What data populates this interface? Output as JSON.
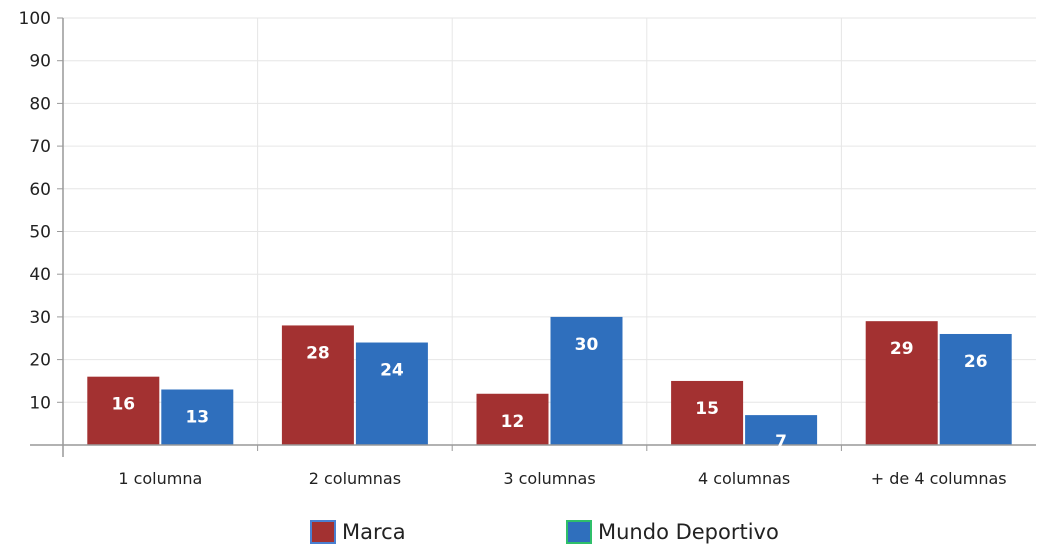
{
  "chart_data": {
    "type": "bar",
    "categories": [
      "1 columna",
      "2 columnas",
      "3 columnas",
      "4 columnas",
      "+ de 4 columnas"
    ],
    "series": [
      {
        "name": "Marca",
        "values": [
          16,
          28,
          12,
          15,
          29
        ],
        "color": "#a33131",
        "legend_border": "#4a7fd0"
      },
      {
        "name": "Mundo Deportivo",
        "values": [
          13,
          24,
          30,
          7,
          26
        ],
        "color": "#2f6fbd",
        "legend_border": "#2fbf6a"
      }
    ],
    "yticks": [
      "10",
      "20",
      "30",
      "40",
      "50",
      "60",
      "70",
      "80",
      "90",
      "100"
    ],
    "ylim": [
      0,
      100
    ],
    "grid": true,
    "legend_position": "bottom"
  }
}
